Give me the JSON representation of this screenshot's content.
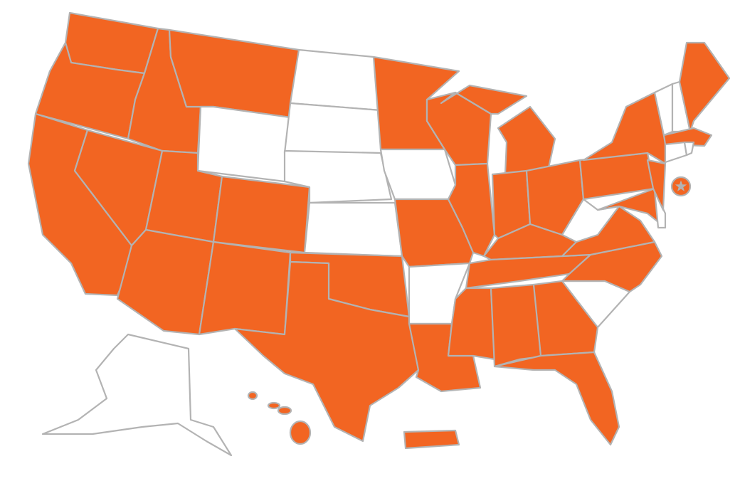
{
  "colors": {
    "highlighted": "#F26522",
    "not_highlighted": "#FFFFFF",
    "border": "#B3B3B3"
  },
  "states": {
    "WA": true,
    "OR": true,
    "CA": true,
    "NV": true,
    "ID": true,
    "MT": true,
    "WY": false,
    "UT": true,
    "CO": true,
    "AZ": true,
    "NM": true,
    "ND": false,
    "SD": false,
    "NE": false,
    "KS": false,
    "OK": true,
    "TX": true,
    "MN": true,
    "IA": false,
    "MO": true,
    "AR": false,
    "LA": true,
    "WI": true,
    "IL": true,
    "MI": true,
    "IN": true,
    "OH": true,
    "KY": true,
    "TN": true,
    "MS": true,
    "AL": true,
    "GA": true,
    "FL": true,
    "SC": false,
    "NC": true,
    "VA": true,
    "WV": false,
    "PA": true,
    "NY": true,
    "MD": true,
    "DE": false,
    "NJ": true,
    "VT": false,
    "NH": false,
    "ME": true,
    "MA": true,
    "CT": false,
    "RI": false,
    "AK": false,
    "HI": true,
    "PR": true,
    "DC": true
  },
  "dc_marker_icon": "star-icon"
}
